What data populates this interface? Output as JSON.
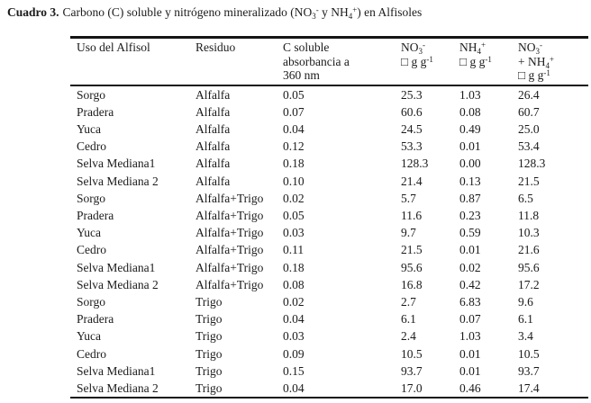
{
  "page": {
    "background_color": "#ffffff",
    "text_color": "#1b1b1b",
    "rule_color": "#141414"
  },
  "title": {
    "label": "Cuadro 3.",
    "text": "Carbono (C) soluble y nitrógeno mineralizado (NO~3~^-^ y NH~4~^+^) en Alfisoles"
  },
  "table": {
    "columns": [
      {
        "id": "uso-del-alfisol",
        "header": "Uso del Alfisol"
      },
      {
        "id": "residuo",
        "header": "Residuo"
      },
      {
        "id": "c-soluble",
        "header": "C soluble\nabsorbancia a\n360 nm"
      },
      {
        "id": "no3",
        "header": "NO~3~^-^\n□ g g^-1^"
      },
      {
        "id": "nh4",
        "header": "NH~4~^+^\n□ g g^-1^"
      },
      {
        "id": "no3-mas-nh4",
        "header": "NO~3~^-^\n+ NH~4~^+^\n□ g g^-1^"
      }
    ],
    "rows": [
      [
        "Sorgo",
        "Alfalfa",
        "0.05",
        "25.3",
        "1.03",
        "26.4"
      ],
      [
        "Pradera",
        "Alfalfa",
        "0.07",
        "60.6",
        "0.08",
        "60.7"
      ],
      [
        "Yuca",
        "Alfalfa",
        "0.04",
        "24.5",
        "0.49",
        "25.0"
      ],
      [
        "Cedro",
        "Alfalfa",
        "0.12",
        "53.3",
        "0.01",
        "53.4"
      ],
      [
        "Selva Mediana1",
        "Alfalfa",
        "0.18",
        "128.3",
        "0.00",
        "128.3"
      ],
      [
        "Selva Mediana 2",
        "Alfalfa",
        "0.10",
        "21.4",
        "0.13",
        "21.5"
      ],
      [
        "Sorgo",
        "Alfalfa+Trigo",
        "0.02",
        "5.7",
        "0.87",
        "6.5"
      ],
      [
        "Pradera",
        "Alfalfa+Trigo",
        "0.05",
        "11.6",
        "0.23",
        "11.8"
      ],
      [
        "Yuca",
        "Alfalfa+Trigo",
        "0.03",
        "9.7",
        "0.59",
        "10.3"
      ],
      [
        "Cedro",
        "Alfalfa+Trigo",
        "0.11",
        "21.5",
        "0.01",
        "21.6"
      ],
      [
        "Selva Mediana1",
        "Alfalfa+Trigo",
        "0.18",
        "95.6",
        "0.02",
        "95.6"
      ],
      [
        "Selva Mediana 2",
        "Alfalfa+Trigo",
        "0.08",
        "16.8",
        "0.42",
        "17.2"
      ],
      [
        "Sorgo",
        "Trigo",
        "0.02",
        "2.7",
        "6.83",
        "9.6"
      ],
      [
        "Pradera",
        "Trigo",
        "0.04",
        "6.1",
        "0.07",
        "6.1"
      ],
      [
        "Yuca",
        "Trigo",
        "0.03",
        "2.4",
        "1.03",
        "3.4"
      ],
      [
        "Cedro",
        "Trigo",
        "0.09",
        "10.5",
        "0.01",
        "10.5"
      ],
      [
        "Selva Mediana1",
        "Trigo",
        "0.15",
        "93.7",
        "0.01",
        "93.7"
      ],
      [
        "Selva Mediana 2",
        "Trigo",
        "0.04",
        "17.0",
        "0.46",
        "17.4"
      ]
    ]
  }
}
